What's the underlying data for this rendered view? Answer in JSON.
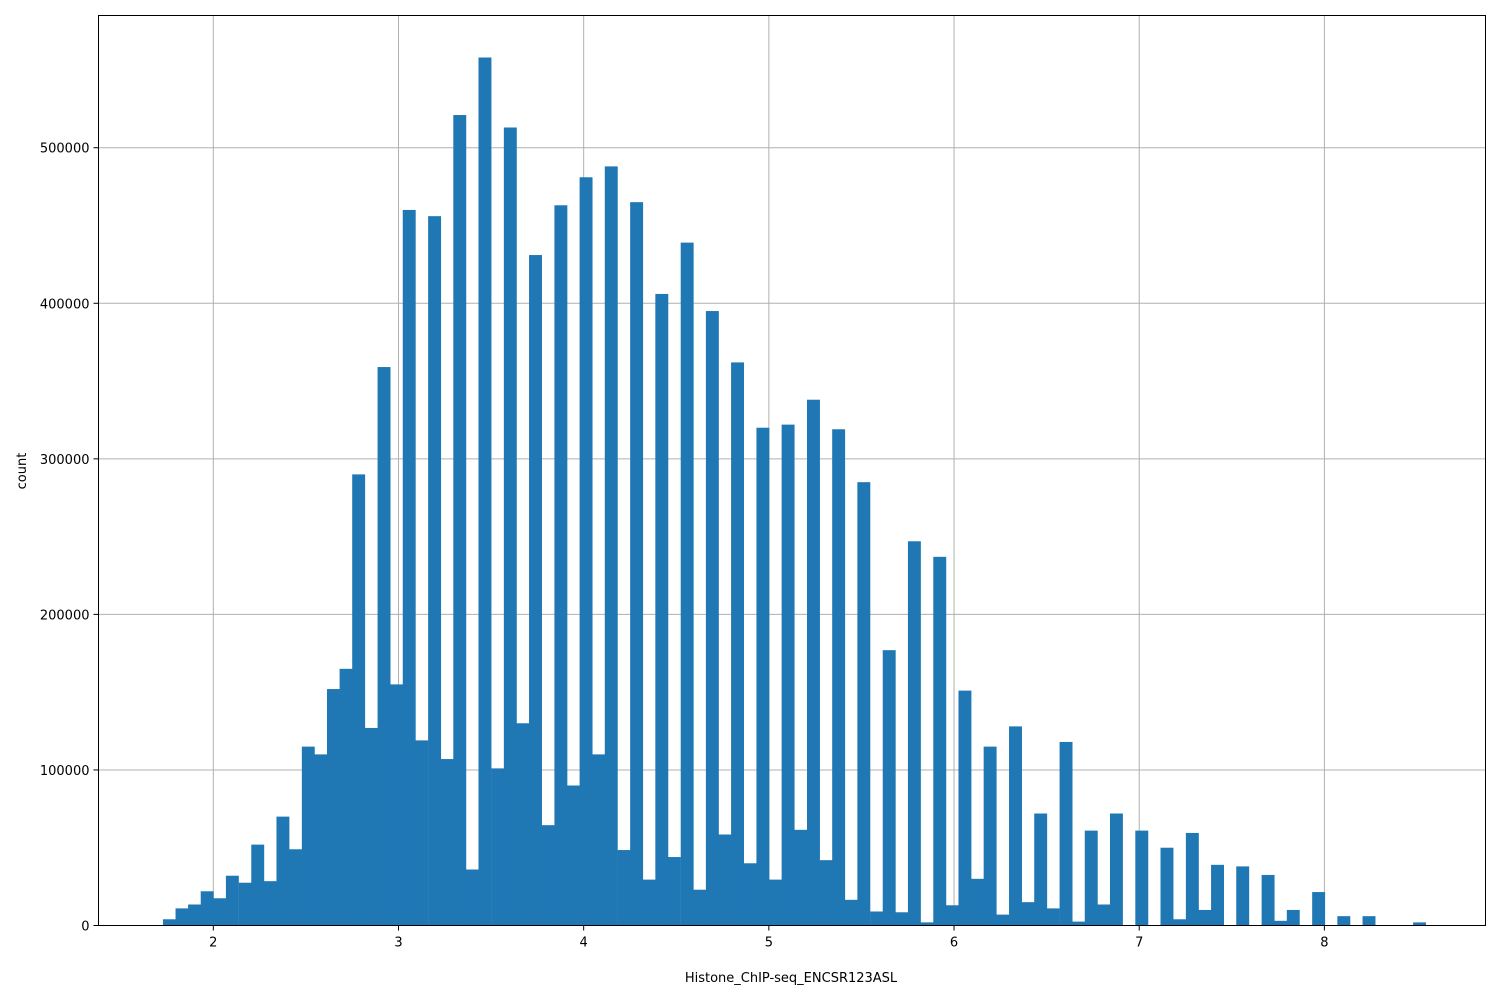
{
  "chart_data": {
    "type": "bar",
    "title": "",
    "xlabel": "Histone_ChIP-seq_ENCSR123ASL",
    "ylabel": "count",
    "xlim": [
      1.38,
      8.87
    ],
    "ylim": [
      0,
      585000
    ],
    "grid": true,
    "bar_color": "#1f77b4",
    "x_ticks": [
      2,
      3,
      4,
      5,
      6,
      7,
      8
    ],
    "x_tick_labels": [
      "2",
      "3",
      "4",
      "5",
      "6",
      "7",
      "8"
    ],
    "y_ticks": [
      0,
      100000,
      200000,
      300000,
      400000,
      500000
    ],
    "y_tick_labels": [
      "0",
      "100000",
      "200000",
      "300000",
      "400000",
      "500000"
    ],
    "bin_width": 0.0682,
    "bin_starts": [
      1.728,
      1.796,
      1.864,
      1.932,
      2.0,
      2.068,
      2.137,
      2.205,
      2.273,
      2.341,
      2.409,
      2.478,
      2.546,
      2.614,
      2.682,
      2.75,
      2.819,
      2.887,
      2.955,
      3.023,
      3.091,
      3.16,
      3.228,
      3.296,
      3.364,
      3.432,
      3.501,
      3.569,
      3.637,
      3.705,
      3.773,
      3.842,
      3.91,
      3.978,
      4.046,
      4.114,
      4.183,
      4.251,
      4.319,
      4.387,
      4.455,
      4.524,
      4.592,
      4.66,
      4.728,
      4.796,
      4.865,
      4.933,
      5.001,
      5.069,
      5.137,
      5.206,
      5.274,
      5.342,
      5.41,
      5.478,
      5.547,
      5.615,
      5.683,
      5.751,
      5.819,
      5.888,
      5.956,
      6.024,
      6.092,
      6.16,
      6.229,
      6.297,
      6.365,
      6.433,
      6.501,
      6.57,
      6.638,
      6.706,
      6.774,
      6.842,
      6.911,
      6.979,
      7.047,
      7.115,
      7.183,
      7.252,
      7.32,
      7.388,
      7.456,
      7.524,
      7.593,
      7.661,
      7.729,
      7.797,
      7.865,
      7.934,
      8.002,
      8.07,
      8.138,
      8.206,
      8.275,
      8.343,
      8.411,
      8.479
    ],
    "values": [
      4000,
      11000,
      13500,
      22000,
      17500,
      32000,
      27500,
      52000,
      28500,
      70000,
      49000,
      115000,
      110000,
      152000,
      165000,
      290000,
      127000,
      359000,
      155000,
      460000,
      119000,
      456000,
      107000,
      521000,
      36000,
      558000,
      101000,
      513000,
      130000,
      431000,
      64500,
      463000,
      90000,
      481000,
      110000,
      488000,
      48500,
      465000,
      29500,
      406000,
      44000,
      439000,
      23000,
      395000,
      58500,
      362000,
      40000,
      320000,
      29500,
      322000,
      61500,
      338000,
      42000,
      319000,
      16500,
      285000,
      9000,
      177000,
      8500,
      247000,
      2000,
      237000,
      13000,
      151000,
      30000,
      115000,
      7000,
      128000,
      15000,
      72000,
      11000,
      118000,
      2500,
      61000,
      13500,
      72000,
      0,
      61000,
      0,
      50000,
      4000,
      59500,
      10000,
      39000,
      0,
      38000,
      0,
      32500,
      3000,
      10000,
      0,
      21500,
      0,
      6000,
      0,
      6000,
      0,
      0,
      0,
      2000
    ]
  }
}
